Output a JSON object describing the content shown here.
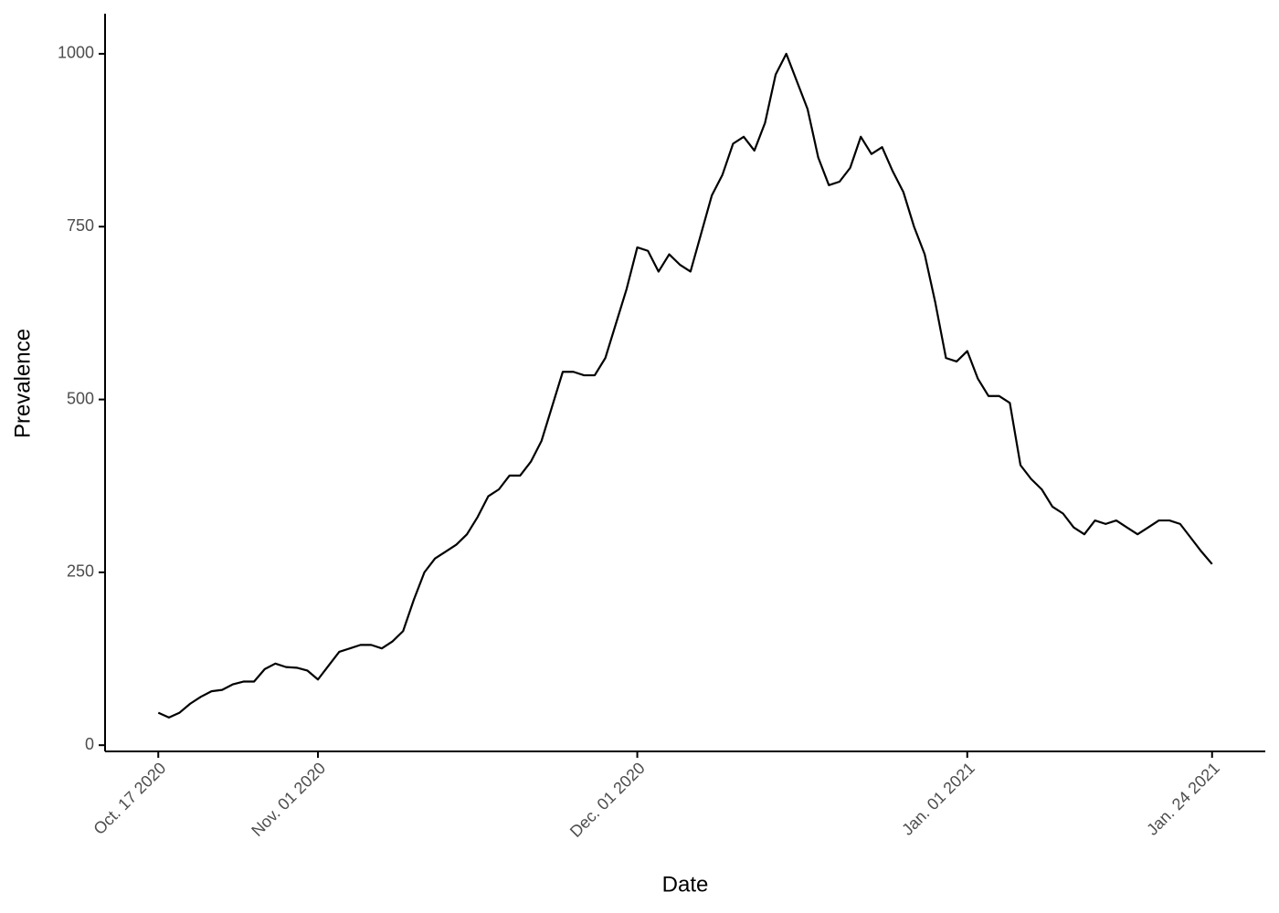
{
  "chart_data": {
    "type": "line",
    "x_label": "Date",
    "y_label": "Prevalence",
    "x": [
      "2020-10-17",
      "2020-10-18",
      "2020-10-19",
      "2020-10-20",
      "2020-10-21",
      "2020-10-22",
      "2020-10-23",
      "2020-10-24",
      "2020-10-25",
      "2020-10-26",
      "2020-10-27",
      "2020-10-28",
      "2020-10-29",
      "2020-10-30",
      "2020-10-31",
      "2020-11-01",
      "2020-11-02",
      "2020-11-03",
      "2020-11-04",
      "2020-11-05",
      "2020-11-06",
      "2020-11-07",
      "2020-11-08",
      "2020-11-09",
      "2020-11-10",
      "2020-11-11",
      "2020-11-12",
      "2020-11-13",
      "2020-11-14",
      "2020-11-15",
      "2020-11-16",
      "2020-11-17",
      "2020-11-18",
      "2020-11-19",
      "2020-11-20",
      "2020-11-21",
      "2020-11-22",
      "2020-11-23",
      "2020-11-24",
      "2020-11-25",
      "2020-11-26",
      "2020-11-27",
      "2020-11-28",
      "2020-11-29",
      "2020-11-30",
      "2020-12-01",
      "2020-12-02",
      "2020-12-03",
      "2020-12-04",
      "2020-12-05",
      "2020-12-06",
      "2020-12-07",
      "2020-12-08",
      "2020-12-09",
      "2020-12-10",
      "2020-12-11",
      "2020-12-12",
      "2020-12-13",
      "2020-12-14",
      "2020-12-15",
      "2020-12-16",
      "2020-12-17",
      "2020-12-18",
      "2020-12-19",
      "2020-12-20",
      "2020-12-21",
      "2020-12-22",
      "2020-12-23",
      "2020-12-24",
      "2020-12-25",
      "2020-12-26",
      "2020-12-27",
      "2020-12-28",
      "2020-12-29",
      "2020-12-30",
      "2020-12-31",
      "2021-01-01",
      "2021-01-02",
      "2021-01-03",
      "2021-01-04",
      "2021-01-05",
      "2021-01-06",
      "2021-01-07",
      "2021-01-08",
      "2021-01-09",
      "2021-01-10",
      "2021-01-11",
      "2021-01-12",
      "2021-01-13",
      "2021-01-14",
      "2021-01-15",
      "2021-01-16",
      "2021-01-17",
      "2021-01-18",
      "2021-01-19",
      "2021-01-20",
      "2021-01-21",
      "2021-01-22",
      "2021-01-23",
      "2021-01-24"
    ],
    "series": [
      {
        "name": "Prevalence",
        "color": "#000000",
        "values": [
          47,
          40,
          47,
          60,
          70,
          78,
          80,
          88,
          92,
          92,
          110,
          118,
          113,
          112,
          108,
          95,
          115,
          135,
          140,
          145,
          145,
          140,
          150,
          165,
          210,
          250,
          270,
          280,
          290,
          305,
          330,
          360,
          370,
          390,
          390,
          410,
          440,
          490,
          540,
          540,
          535,
          535,
          560,
          610,
          660,
          720,
          715,
          685,
          710,
          695,
          685,
          740,
          795,
          825,
          870,
          880,
          860,
          900,
          970,
          1000,
          960,
          920,
          850,
          810,
          815,
          835,
          880,
          855,
          865,
          830,
          800,
          750,
          710,
          640,
          560,
          555,
          570,
          530,
          505,
          505,
          495,
          405,
          385,
          370,
          345,
          335,
          315,
          305,
          325,
          320,
          325,
          315,
          305,
          315,
          325,
          325,
          320,
          300,
          280,
          262
        ]
      }
    ],
    "xlim": [
      "2020-10-12",
      "2021-01-29"
    ],
    "xticks": [
      {
        "value": "2020-10-17",
        "label": "Oct. 17 2020"
      },
      {
        "value": "2020-11-01",
        "label": "Nov. 01 2020"
      },
      {
        "value": "2020-12-01",
        "label": "Dec. 01 2020"
      },
      {
        "value": "2021-01-01",
        "label": "Jan. 01 2021"
      },
      {
        "value": "2021-01-24",
        "label": "Jan. 24 2021"
      }
    ],
    "ylim": [
      -9,
      1058
    ],
    "yticks": [
      0,
      250,
      500,
      750,
      1000
    ],
    "grid": false
  }
}
